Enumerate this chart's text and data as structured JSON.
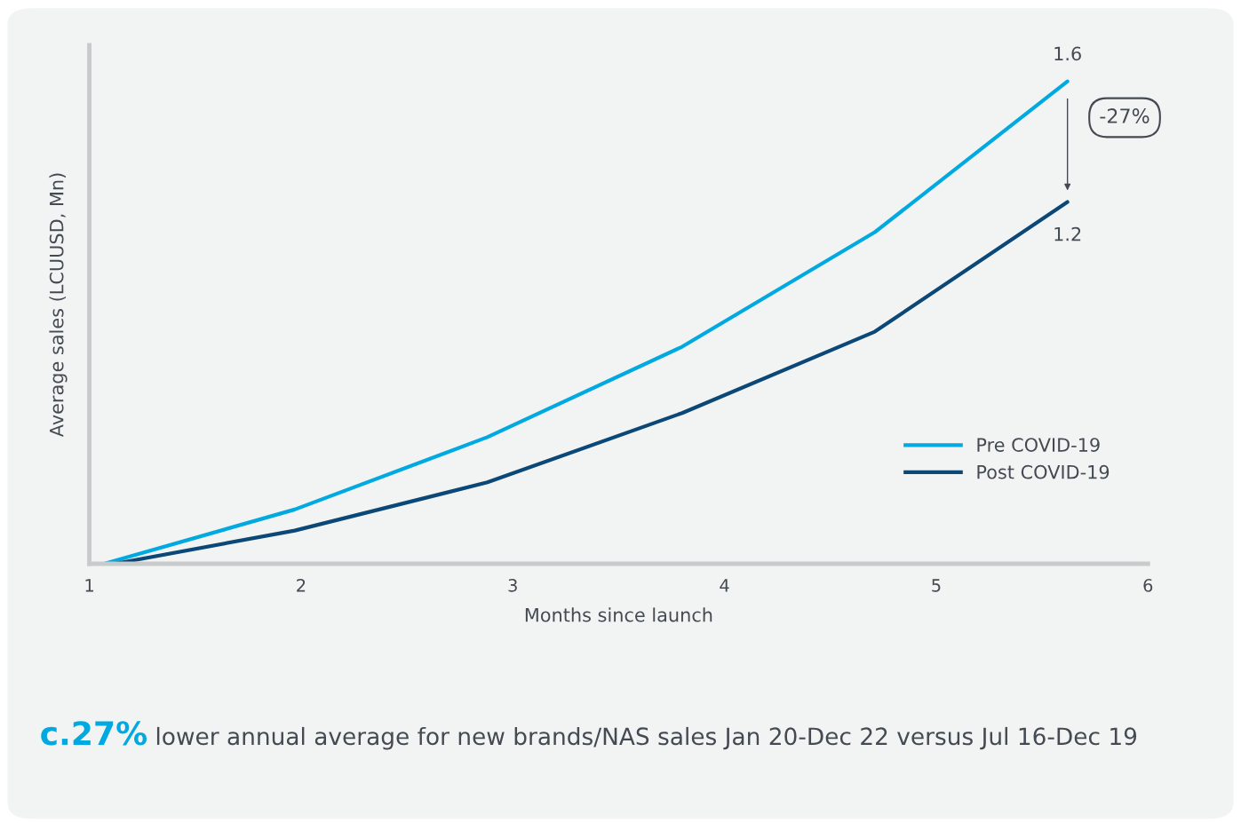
{
  "chart_data": {
    "type": "line",
    "ylim": [
      0,
      1.72
    ],
    "xlabel": "Months since launch",
    "ylabel": "Average sales (LCUUSD, Mn)",
    "x": [
      1.07,
      1.97,
      2.88,
      3.8,
      4.71,
      5.62
    ],
    "xlim": [
      1,
      6
    ],
    "xticks": [
      1,
      2,
      3,
      4,
      5,
      6
    ],
    "series": [
      {
        "name": "Pre COVID-19",
        "color": "#00a9e0",
        "values": [
          0,
          0.18,
          0.42,
          0.72,
          1.1,
          1.6
        ],
        "value_labels": [
          null,
          null,
          null,
          null,
          null,
          "1.6"
        ]
      },
      {
        "name": "Post COVID-19",
        "color": "#0b4877",
        "x": [
          1.12,
          1.97,
          2.88,
          3.8,
          4.71,
          5.62
        ],
        "values": [
          0,
          0.11,
          0.27,
          0.5,
          0.77,
          1.2
        ],
        "value_labels": [
          null,
          null,
          null,
          null,
          null,
          "1.2"
        ]
      }
    ],
    "annotations": [
      "-27%",
      "c.27%",
      "lower annual average for new brands/NAS sales Jan 20-Dec 22 versus Jul 16-Dec 19"
    ],
    "legend": "right",
    "grid": false,
    "marker": "none",
    "line_style": "solid"
  }
}
